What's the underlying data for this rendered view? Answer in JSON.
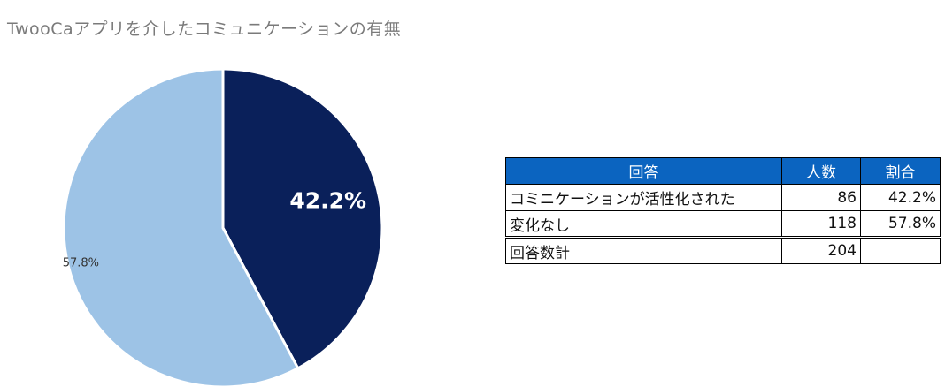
{
  "chart_data": {
    "type": "pie",
    "title": "TwooCaアプリを介したコミュニケーションの有無",
    "slices": [
      {
        "label": "コミニケーションが活性化された",
        "value": 42.2,
        "display": "42.2%",
        "color": "#0a205a"
      },
      {
        "label": "変化なし",
        "value": 57.8,
        "display": "57.8%",
        "color": "#9dc3e6"
      }
    ],
    "start_angle_deg": 0,
    "direction": "clockwise"
  },
  "table": {
    "headers": [
      "回答",
      "人数",
      "割合"
    ],
    "rows": [
      {
        "answer": "コミニケーションが活性化された",
        "count": "86",
        "ratio": "42.2%"
      },
      {
        "answer": "変化なし",
        "count": "118",
        "ratio": "57.8%"
      }
    ],
    "total": {
      "label": "回答数計",
      "count": "204",
      "ratio": ""
    }
  },
  "colors": {
    "header_bg": "#0b64c0",
    "dark_slice": "#0a205a",
    "light_slice": "#9dc3e6"
  }
}
